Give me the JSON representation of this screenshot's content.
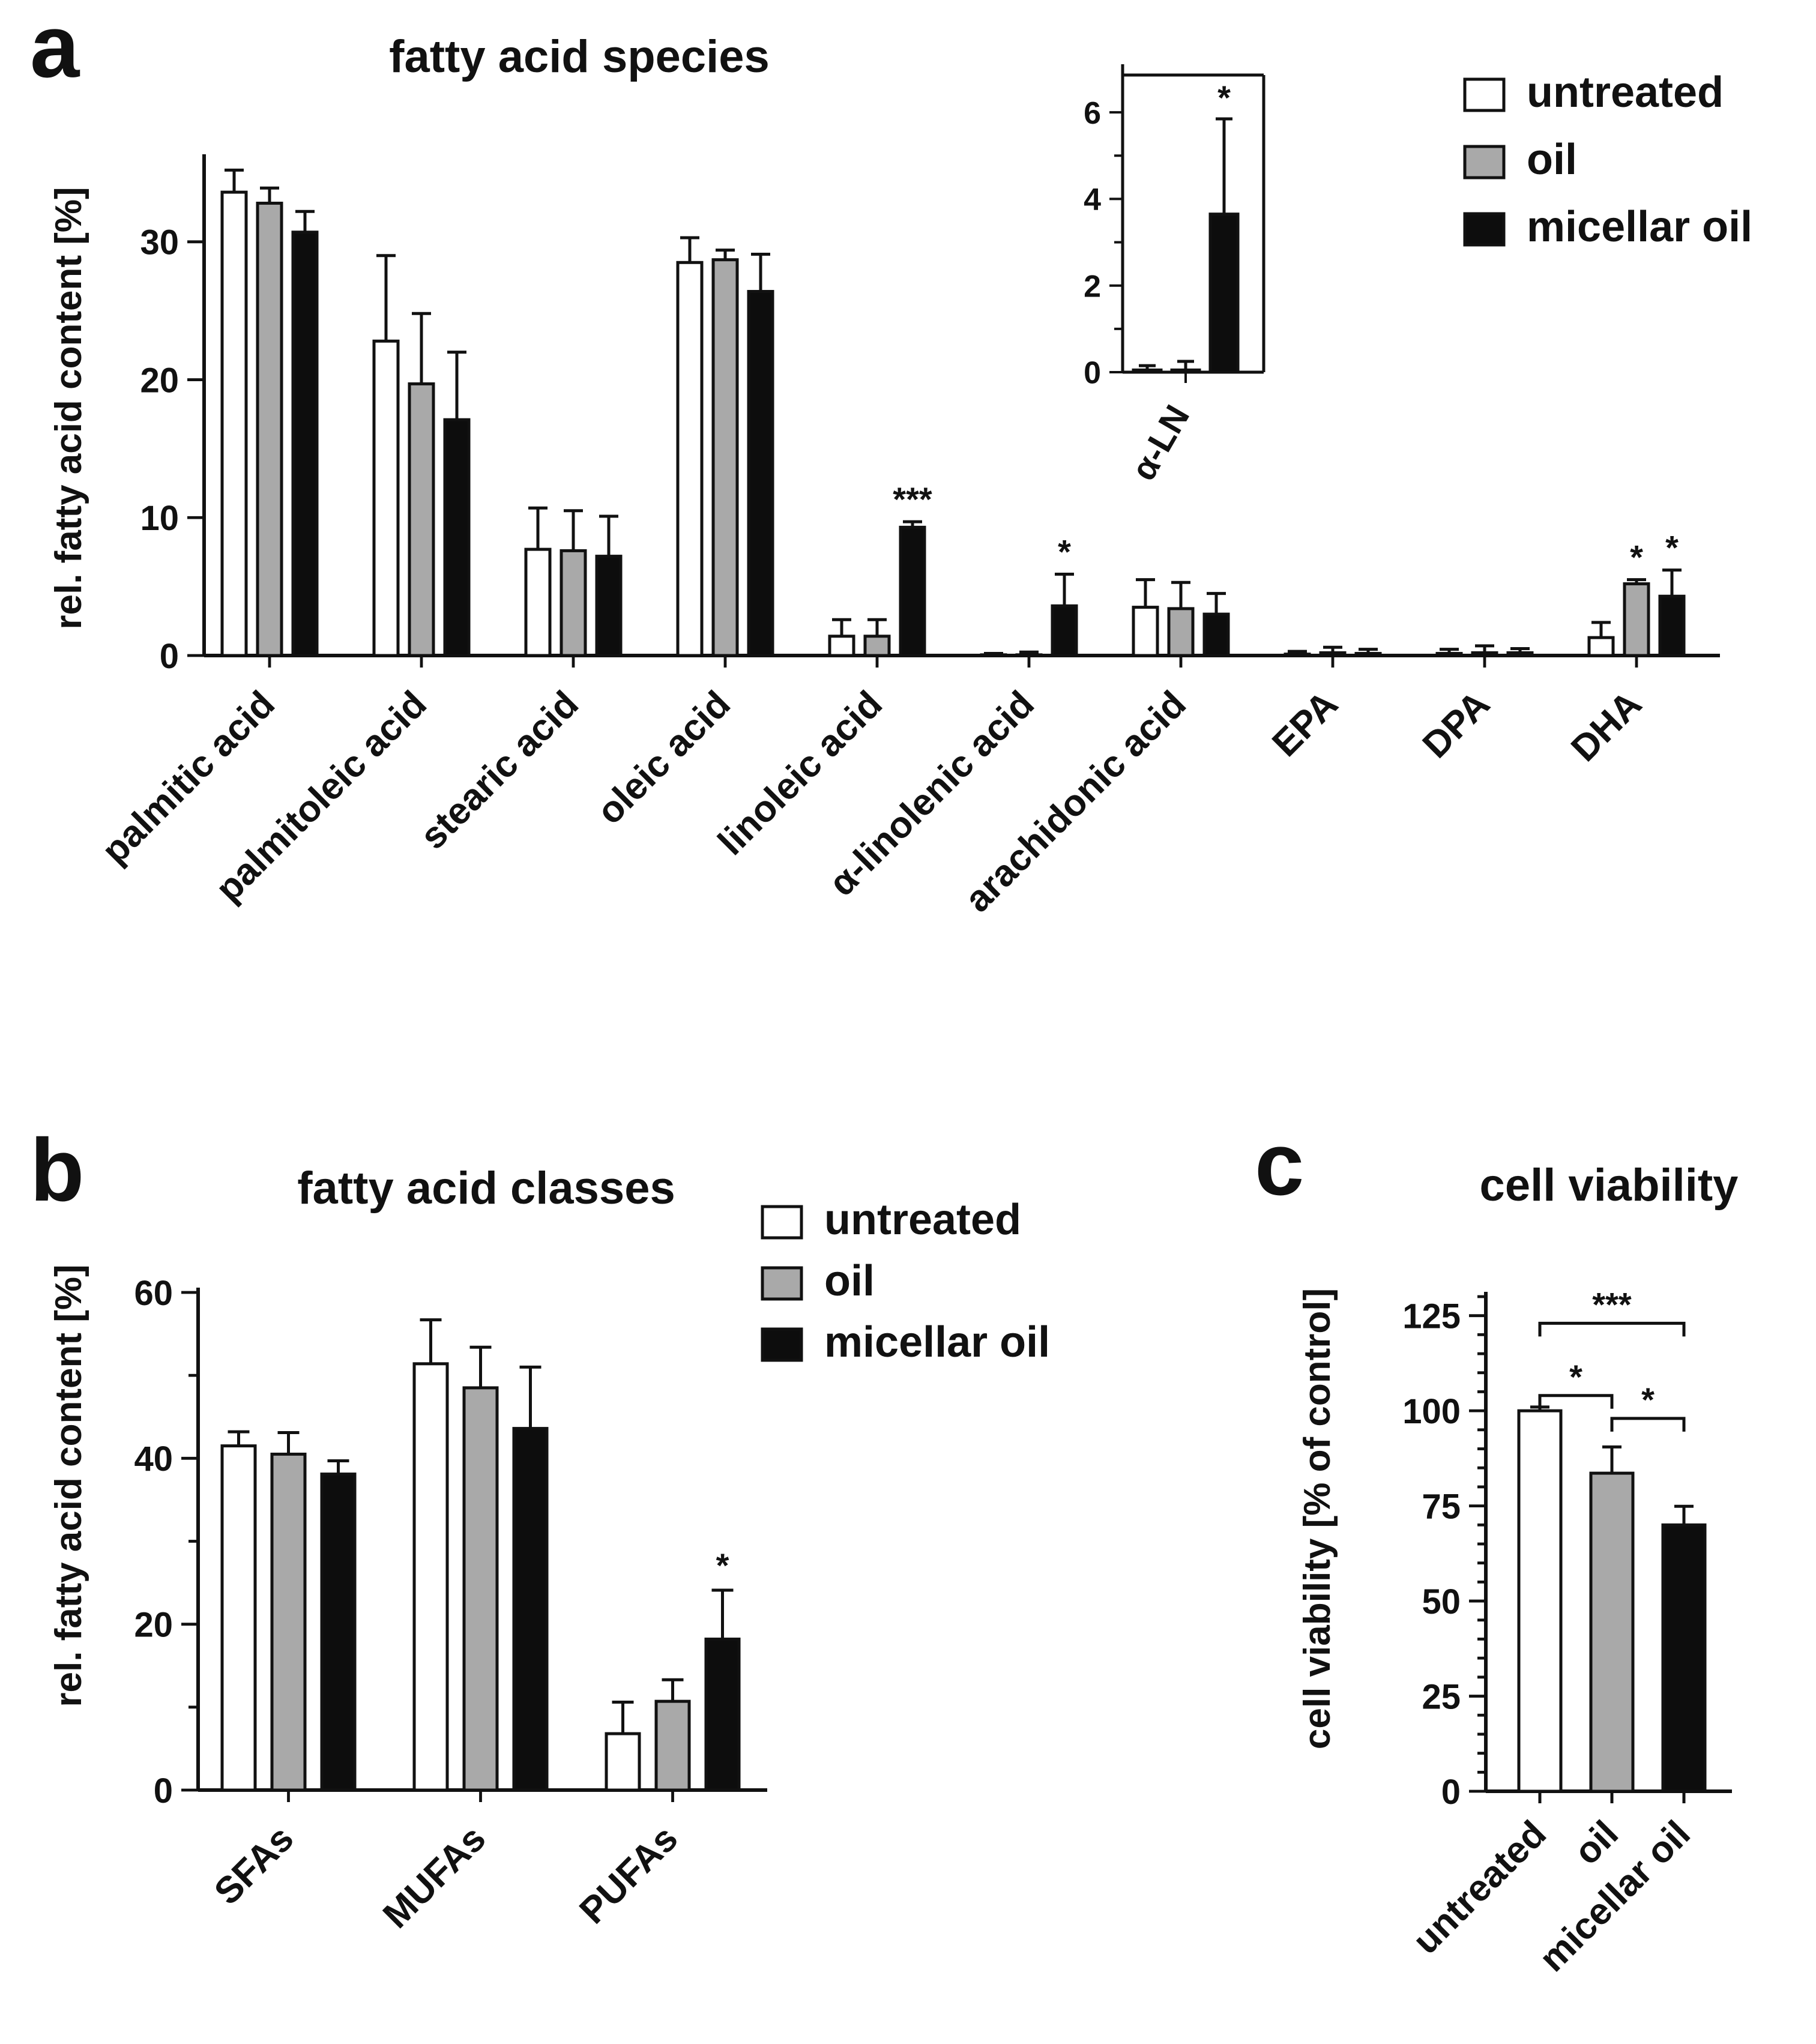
{
  "colors": {
    "untreated": "#ffffff",
    "oil": "#a9a9a9",
    "micellar": "#0d0d0d",
    "ink": "#111111"
  },
  "legend_entries": [
    "untreated",
    "oil",
    "micellar oil"
  ],
  "panels": {
    "a": {
      "letter": "a",
      "title": "fatty acid species",
      "ylabel": "rel. fatty acid content [%]"
    },
    "b": {
      "letter": "b",
      "title": "fatty acid classes",
      "ylabel": "rel. fatty acid content [%]"
    },
    "c": {
      "letter": "c",
      "title": "cell viability",
      "ylabel": "cell viability [% of control]"
    }
  },
  "chart_data": [
    {
      "type": "bar",
      "id": "a",
      "title": "fatty acid species",
      "ylabel": "rel. fatty acid content [%]",
      "ylim": [
        0,
        36
      ],
      "yticks": [
        0,
        10,
        20,
        30
      ],
      "yticks_labeled": [
        0,
        10,
        20,
        30
      ],
      "categories": [
        "palmitic acid",
        "palmitoleic acid",
        "stearic acid",
        "oleic acid",
        "linoleic acid",
        "α-linolenic acid",
        "arachidonic acid",
        "EPA",
        "DPA",
        "DHA"
      ],
      "series": [
        {
          "name": "untreated",
          "values": [
            33.6,
            22.8,
            7.7,
            28.5,
            1.4,
            0.05,
            3.5,
            0.1,
            0.15,
            1.3
          ],
          "errors": [
            1.6,
            6.2,
            3.0,
            1.8,
            1.2,
            0.1,
            2.0,
            0.2,
            0.3,
            1.1
          ]
        },
        {
          "name": "oil",
          "values": [
            32.8,
            19.7,
            7.6,
            28.7,
            1.4,
            0.05,
            3.4,
            0.2,
            0.2,
            5.2
          ],
          "errors": [
            1.1,
            5.1,
            2.9,
            0.7,
            1.2,
            0.2,
            1.9,
            0.4,
            0.5,
            0.3
          ]
        },
        {
          "name": "micellar oil",
          "values": [
            30.7,
            17.1,
            7.2,
            26.4,
            9.3,
            3.6,
            3.0,
            0.15,
            0.2,
            4.3
          ],
          "errors": [
            1.5,
            4.9,
            2.9,
            2.7,
            0.4,
            2.3,
            1.5,
            0.3,
            0.3,
            1.9
          ]
        }
      ],
      "annotations": [
        {
          "text": "***",
          "category": 4,
          "series": 2
        },
        {
          "text": "*",
          "category": 5,
          "series": 2
        },
        {
          "text": "*",
          "category": 9,
          "series": 1
        },
        {
          "text": "*",
          "category": 9,
          "series": 2
        }
      ],
      "legend": "top-right"
    },
    {
      "type": "bar",
      "id": "a-inset",
      "categories": [
        "α-LN"
      ],
      "ylim": [
        0,
        7
      ],
      "yticks": [
        0,
        1,
        2,
        3,
        4,
        5,
        6
      ],
      "yticks_labeled": [
        0,
        2,
        4,
        6
      ],
      "series": [
        {
          "name": "untreated",
          "values": [
            0.05
          ],
          "errors": [
            0.1
          ]
        },
        {
          "name": "oil",
          "values": [
            0.05
          ],
          "errors": [
            0.2
          ]
        },
        {
          "name": "micellar oil",
          "values": [
            3.65
          ],
          "errors": [
            2.2
          ]
        }
      ],
      "annotations": [
        {
          "text": "*",
          "category": 0,
          "series": 2
        }
      ]
    },
    {
      "type": "bar",
      "id": "b",
      "title": "fatty acid classes",
      "ylabel": "rel. fatty acid content [%]",
      "ylim": [
        0,
        60
      ],
      "yticks": [
        0,
        10,
        20,
        30,
        40,
        50,
        60
      ],
      "yticks_labeled": [
        0,
        20,
        40,
        60
      ],
      "categories": [
        "SFAs",
        "MUFAs",
        "PUFAs"
      ],
      "series": [
        {
          "name": "untreated",
          "values": [
            41.5,
            51.4,
            6.8
          ],
          "errors": [
            1.7,
            5.3,
            3.8
          ]
        },
        {
          "name": "oil",
          "values": [
            40.5,
            48.5,
            10.7
          ],
          "errors": [
            2.6,
            4.9,
            2.6
          ]
        },
        {
          "name": "micellar oil",
          "values": [
            38.1,
            43.6,
            18.2
          ],
          "errors": [
            1.6,
            7.4,
            5.9
          ]
        }
      ],
      "annotations": [
        {
          "text": "*",
          "category": 2,
          "series": 2
        }
      ],
      "legend": "top-right"
    },
    {
      "type": "bar",
      "id": "c",
      "title": "cell viability",
      "ylabel": "cell viability [% of control]",
      "ylim": [
        0,
        130
      ],
      "yticks": [
        0,
        5,
        10,
        15,
        20,
        25,
        30,
        35,
        40,
        45,
        50,
        55,
        60,
        65,
        70,
        75,
        80,
        85,
        90,
        95,
        100,
        105,
        110,
        115,
        120,
        125,
        130
      ],
      "yticks_labeled": [
        0,
        25,
        50,
        75,
        100,
        125
      ],
      "categories": [
        "untreated",
        "oil",
        "micellar oil"
      ],
      "values": [
        100,
        83.6,
        70.0
      ],
      "errors": [
        1.0,
        6.9,
        4.9
      ],
      "significance": [
        {
          "from": 0,
          "to": 1,
          "text": "*",
          "y": 104
        },
        {
          "from": 1,
          "to": 2,
          "text": "*",
          "y": 98
        },
        {
          "from": 0,
          "to": 2,
          "text": "***",
          "y": 123
        }
      ]
    }
  ]
}
